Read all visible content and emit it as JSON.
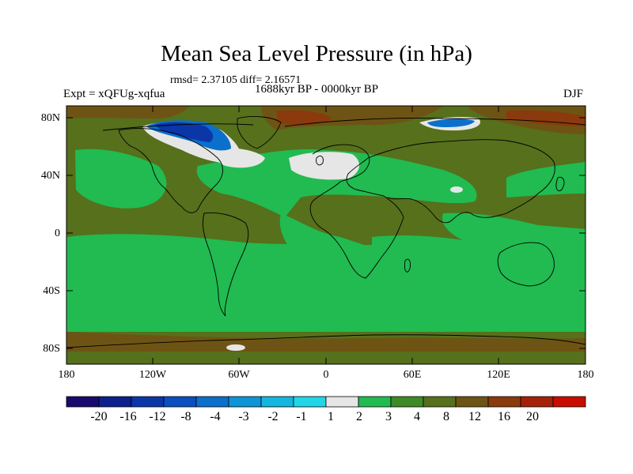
{
  "header": {
    "title": "Mean Sea Level Pressure (in hPa)",
    "stats": "rmsd= 2.37105 diff= 2.16571",
    "period": "1688kyr BP - 0000kyr BP",
    "experiment": "Expt = xQFUg-xqfua",
    "season": "DJF"
  },
  "map": {
    "latitude_labels": [
      "80N",
      "40N",
      "0",
      "40S",
      "80S"
    ],
    "longitude_labels": [
      "180",
      "120W",
      "60W",
      "0",
      "60E",
      "120E",
      "180"
    ]
  },
  "colorbar": {
    "labels": [
      "-20",
      "-16",
      "-12",
      "-8",
      "-4",
      "-3",
      "-2",
      "-1",
      "1",
      "2",
      "3",
      "4",
      "8",
      "12",
      "16",
      "20"
    ],
    "colors": [
      "#1a0a6e",
      "#0c1f8c",
      "#0b36a8",
      "#0a4fc0",
      "#0b6fcc",
      "#0d95d8",
      "#14b6e0",
      "#22d6e8",
      "#e6e6e6",
      "#21bb51",
      "#3e8a26",
      "#56701c",
      "#6e5414",
      "#8a3a0c",
      "#a52008",
      "#c80c00"
    ]
  }
}
